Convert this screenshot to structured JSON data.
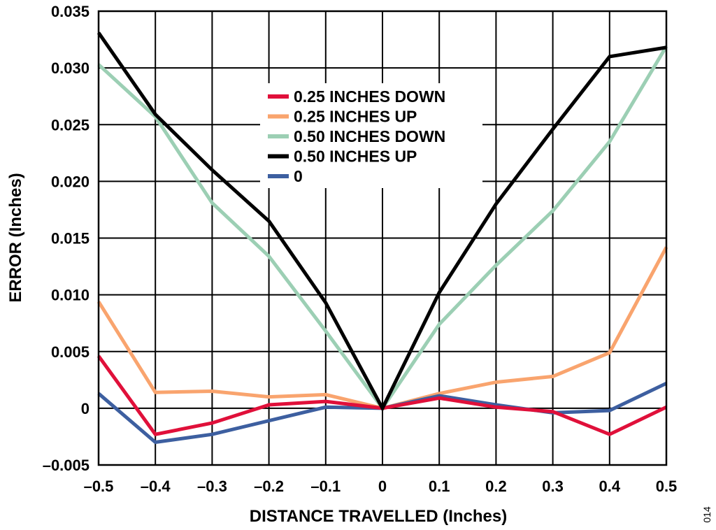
{
  "figure_id": "014",
  "chart_data": {
    "type": "line",
    "xlabel": "DISTANCE TRAVELLED (Inches)",
    "ylabel": "ERROR (Inches)",
    "xlim": [
      -0.5,
      0.5
    ],
    "ylim": [
      -0.005,
      0.035
    ],
    "x_ticks": [
      -0.5,
      -0.4,
      -0.3,
      -0.2,
      -0.1,
      0,
      0.1,
      0.2,
      0.3,
      0.4,
      0.5
    ],
    "x_tick_labels": [
      "–0.5",
      "–0.4",
      "–0.3",
      "–0.2",
      "–0.1",
      "0",
      "0.1",
      "0.2",
      "0.3",
      "0.4",
      "0.5"
    ],
    "y_ticks": [
      -0.005,
      0,
      0.005,
      0.01,
      0.015,
      0.02,
      0.025,
      0.03,
      0.035
    ],
    "y_tick_labels": [
      "–0.005",
      "0",
      "0.005",
      "0.010",
      "0.015",
      "0.020",
      "0.025",
      "0.030",
      "0.035"
    ],
    "grid": true,
    "legend_position": "top-center",
    "x": [
      -0.5,
      -0.4,
      -0.3,
      -0.2,
      -0.1,
      0,
      0.1,
      0.2,
      0.3,
      0.4,
      0.5
    ],
    "series": [
      {
        "name": "0.25 INCHES DOWN",
        "color": "#e0103a",
        "values": [
          0.0046,
          -0.0023,
          -0.0013,
          0.0003,
          0.0006,
          0,
          0.0009,
          0.0001,
          -0.0003,
          -0.0023,
          0.0001
        ]
      },
      {
        "name": "0.25 INCHES UP",
        "color": "#f9a46e",
        "values": [
          0.0094,
          0.0014,
          0.0015,
          0.001,
          0.0012,
          0,
          0.0013,
          0.0023,
          0.0028,
          0.0049,
          0.0142
        ]
      },
      {
        "name": "0.50 INCHES DOWN",
        "color": "#9ccfb4",
        "values": [
          0.0303,
          0.0257,
          0.0181,
          0.0134,
          0.0068,
          0,
          0.0074,
          0.0126,
          0.0174,
          0.0235,
          0.0319
        ]
      },
      {
        "name": "0.50 INCHES UP",
        "color": "#000000",
        "values": [
          0.0331,
          0.0259,
          0.021,
          0.0165,
          0.0093,
          0,
          0.0102,
          0.018,
          0.0246,
          0.031,
          0.0318
        ]
      },
      {
        "name": "0",
        "color": "#3d5fa0",
        "values": [
          0.0013,
          -0.003,
          -0.0023,
          -0.0011,
          0.0001,
          0,
          0.0011,
          0.0003,
          -0.0004,
          -0.0002,
          0.0022
        ]
      }
    ]
  }
}
